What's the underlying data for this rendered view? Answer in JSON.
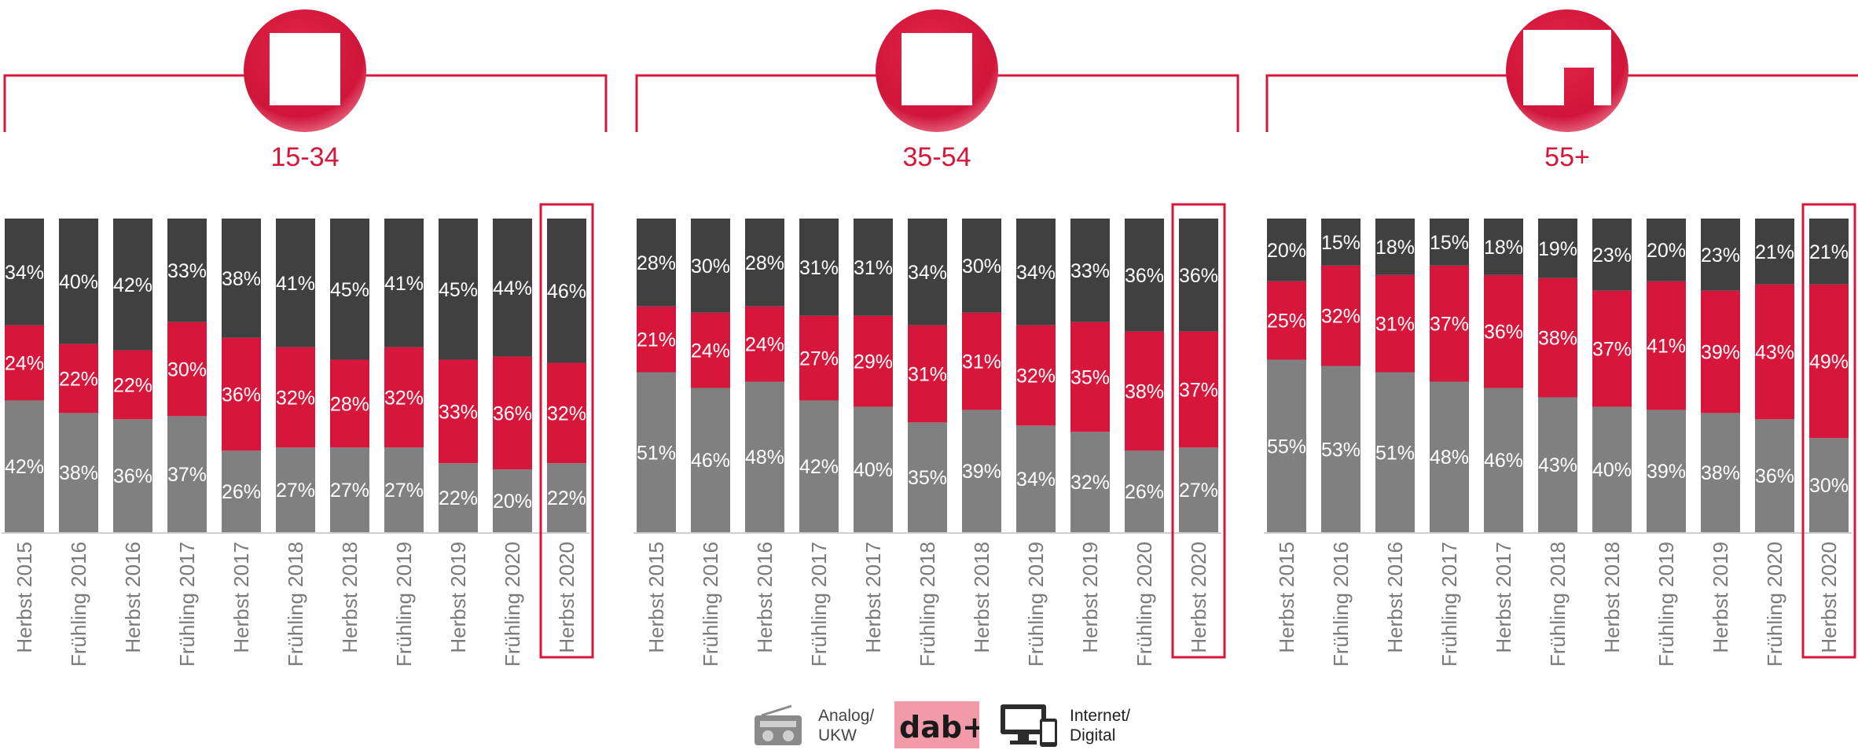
{
  "colors": {
    "analog": "#808080",
    "dab": "#d6163a",
    "internet": "#404040",
    "accent": "#d6163a",
    "text_light": "#ffffff",
    "axis_text": "#7a7a7a"
  },
  "panels": [
    {
      "label": "15-34",
      "icon": "person-icon"
    },
    {
      "label": "35-54",
      "icon": "person-icon"
    },
    {
      "label": "55+",
      "icon": "person-cane-icon"
    }
  ],
  "legend": [
    {
      "icon": "radio-icon",
      "label": "Analog/\nUKW"
    },
    {
      "icon": "dab-logo",
      "label": "dab+"
    },
    {
      "icon": "computer-devices-icon",
      "label": "Internet/\nDigital"
    }
  ],
  "chart_data": [
    {
      "type": "bar",
      "title": "15-34",
      "categories": [
        "Herbst 2015",
        "Frühling 2016",
        "Herbst 2016",
        "Frühling 2017",
        "Herbst 2017",
        "Frühling 2018",
        "Herbst 2018",
        "Frühling 2019",
        "Herbst 2019",
        "Frühling 2020",
        "Herbst 2020"
      ],
      "series": [
        {
          "values": [
            42,
            38,
            36,
            37,
            26,
            27,
            27,
            27,
            22,
            20,
            22
          ]
        },
        {
          "values": [
            24,
            22,
            22,
            30,
            36,
            32,
            28,
            32,
            33,
            36,
            32
          ]
        },
        {
          "values": [
            34,
            40,
            42,
            33,
            38,
            41,
            45,
            41,
            45,
            44,
            46
          ]
        }
      ],
      "stacked": true,
      "ylim": [
        0,
        100
      ],
      "highlight_category": "Herbst 2020"
    },
    {
      "type": "bar",
      "title": "35-54",
      "categories": [
        "Herbst 2015",
        "Frühling 2016",
        "Herbst 2016",
        "Frühling 2017",
        "Herbst 2017",
        "Frühling 2018",
        "Herbst 2018",
        "Frühling 2019",
        "Herbst 2019",
        "Frühling 2020",
        "Herbst 2020"
      ],
      "series": [
        {
          "values": [
            51,
            46,
            48,
            42,
            40,
            35,
            39,
            34,
            32,
            26,
            27
          ]
        },
        {
          "values": [
            21,
            24,
            24,
            27,
            29,
            31,
            31,
            32,
            35,
            38,
            37
          ]
        },
        {
          "values": [
            28,
            30,
            28,
            31,
            31,
            34,
            30,
            34,
            33,
            36,
            36
          ]
        }
      ],
      "stacked": true,
      "ylim": [
        0,
        100
      ],
      "highlight_category": "Herbst 2020"
    },
    {
      "type": "bar",
      "title": "55+",
      "categories": [
        "Herbst 2015",
        "Frühling 2016",
        "Herbst 2016",
        "Frühling 2017",
        "Herbst 2017",
        "Frühling 2018",
        "Herbst 2018",
        "Frühling 2019",
        "Herbst 2019",
        "Frühling 2020",
        "Herbst 2020"
      ],
      "series": [
        {
          "values": [
            55,
            53,
            51,
            48,
            46,
            43,
            40,
            39,
            38,
            36,
            30
          ]
        },
        {
          "values": [
            25,
            32,
            31,
            37,
            36,
            38,
            37,
            41,
            39,
            43,
            49
          ]
        },
        {
          "values": [
            20,
            15,
            18,
            15,
            18,
            19,
            23,
            20,
            23,
            21,
            21
          ]
        }
      ],
      "stacked": true,
      "ylim": [
        0,
        100
      ],
      "highlight_category": "Herbst 2020"
    }
  ]
}
